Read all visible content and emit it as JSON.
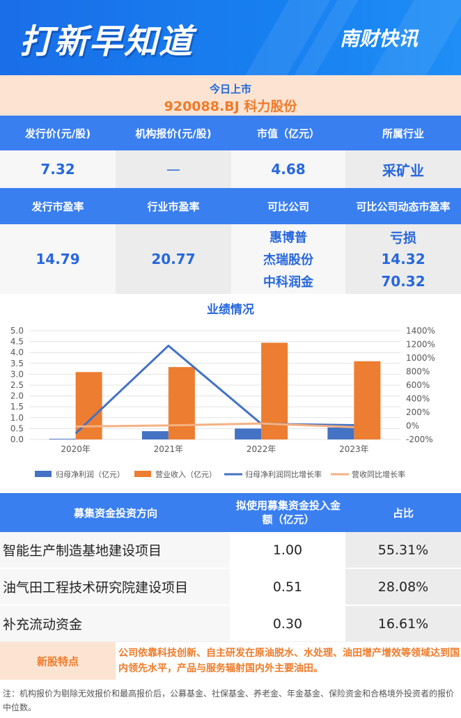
{
  "header": {
    "title": "打新早知道",
    "brand": "南财快讯"
  },
  "today": {
    "label": "今日上市",
    "stock": "920088.BJ  科力股份"
  },
  "info1": {
    "headers": [
      "发行价(元/股)",
      "机构报价(元/股)",
      "市值（亿元）",
      "所属行业"
    ],
    "values": [
      "7.32",
      "—",
      "4.68",
      "采矿业"
    ]
  },
  "info2": {
    "headers": [
      "发行市盈率",
      "行业市盈率",
      "可比公司",
      "可比公司动态市盈率"
    ],
    "issue_pe": "14.79",
    "industry_pe": "20.77",
    "companies": [
      "惠博普",
      "杰瑞股份",
      "中科润金"
    ],
    "company_pe": [
      "亏损",
      "14.32",
      "70.32"
    ]
  },
  "chart_title": "业绩情况",
  "chart_data": {
    "type": "bar",
    "categories": [
      "2020年",
      "2021年",
      "2022年",
      "2023年"
    ],
    "series": [
      {
        "name": "归母净利润（亿元）",
        "type": "bar",
        "axis": "left",
        "color": "#4472c4",
        "values": [
          0.03,
          0.38,
          0.5,
          0.55
        ]
      },
      {
        "name": "营业收入（亿元）",
        "type": "bar",
        "axis": "left",
        "color": "#ed7d31",
        "values": [
          3.1,
          3.33,
          4.45,
          3.6
        ]
      },
      {
        "name": "归母净利润同比增长率",
        "type": "line",
        "axis": "right",
        "color": "#4472c4",
        "values": [
          -110,
          1180,
          30,
          10
        ]
      },
      {
        "name": "营收同比增长率",
        "type": "line",
        "axis": "right",
        "color": "#f4b183",
        "values": [
          -10,
          7,
          34,
          -19
        ]
      }
    ],
    "ylim": [
      0,
      5
    ],
    "yticks": [
      "0.0",
      "0.5",
      "1.0",
      "1.5",
      "2.0",
      "2.5",
      "3.0",
      "3.5",
      "4.0",
      "4.5",
      "5.0"
    ],
    "y2lim": [
      -200,
      1400
    ],
    "y2ticks": [
      "-200%",
      "0%",
      "200%",
      "400%",
      "600%",
      "800%",
      "1000%",
      "1200%",
      "1400%"
    ],
    "legend": "bottom"
  },
  "funds": {
    "headers": [
      "募集资金投资方向",
      "拟使用募集资金投入金额（亿元）",
      "占比"
    ],
    "rows": [
      {
        "name": "智能生产制造基地建设项目",
        "amount": "1.00",
        "ratio": "55.31%"
      },
      {
        "name": "油气田工程技术研究院建设项目",
        "amount": "0.51",
        "ratio": "28.08%"
      },
      {
        "name": "补充流动资金",
        "amount": "0.30",
        "ratio": "16.61%"
      }
    ]
  },
  "feature": {
    "label": "新股特点",
    "text": "公司依靠科技创新、自主研发在原油脱水、水处理、油田增产增效等领域达到国内领先水平，产品与服务辐射国内外主要油田。"
  },
  "note": "注：机构报价为剔除无效报价和最高报价后，公募基金、社保基金、养老金、年金基金、保险资金和合格境外投资者的报价中位数。",
  "colors": {
    "blue": "#3a7ff0",
    "orange": "#ef7b2a",
    "peach": "#fde3d2"
  }
}
